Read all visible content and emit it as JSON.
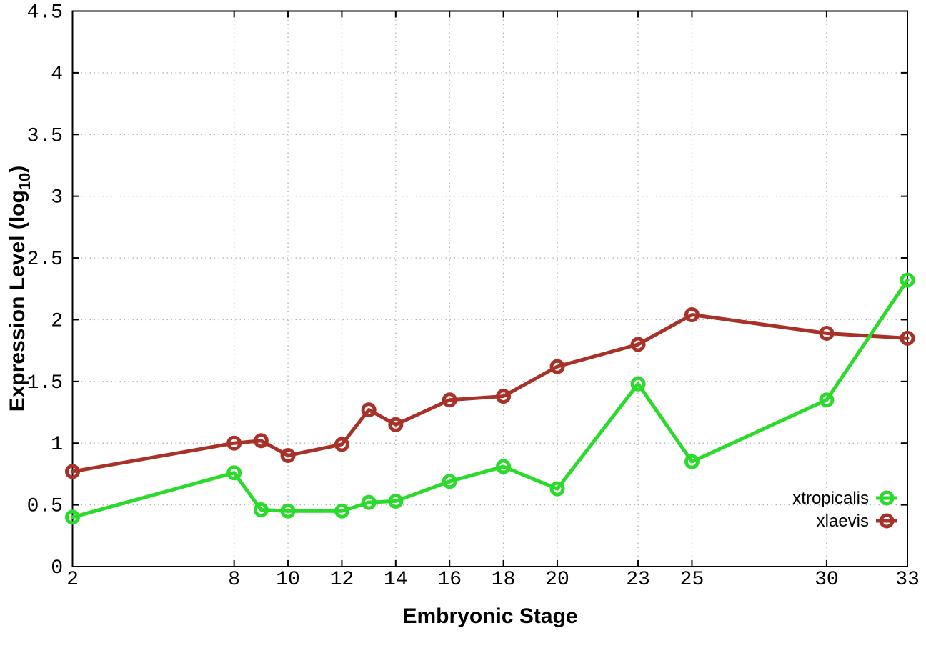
{
  "page": {
    "background": "#ffffff"
  },
  "chart_data": {
    "type": "line",
    "title": "",
    "xlabel": "Embryonic Stage",
    "ylabel": {
      "text": "Expression Level (log",
      "subscript": "10",
      "suffix": ")"
    },
    "xlim": [
      2,
      33
    ],
    "ylim": [
      0,
      4.5
    ],
    "x_tick_values": [
      2,
      8,
      10,
      12,
      14,
      16,
      18,
      20,
      23,
      25,
      30,
      33
    ],
    "x_tick_labels": [
      "2",
      "8",
      "10",
      "12",
      "14",
      "16",
      "18",
      "20",
      "23",
      "25",
      "30",
      "33"
    ],
    "y_tick_values": [
      0,
      0.5,
      1,
      1.5,
      2,
      2.5,
      3,
      3.5,
      4,
      4.5
    ],
    "y_tick_labels": [
      "0",
      "0.5",
      "1",
      "1.5",
      "2",
      "2.5",
      "3",
      "3.5",
      "4",
      "4.5"
    ],
    "grid": true,
    "grid_style": "dotted",
    "legend_position": "inside-bottom-right",
    "marker": "open-circle",
    "x": [
      2,
      8,
      9,
      10,
      12,
      13,
      14,
      16,
      18,
      20,
      23,
      25,
      30,
      33
    ],
    "series": [
      {
        "name": "xtropicalis",
        "color": "#2bdb2b",
        "values": [
          0.4,
          0.76,
          0.46,
          0.45,
          0.45,
          0.52,
          0.53,
          0.69,
          0.81,
          0.63,
          1.48,
          0.85,
          1.35,
          2.32
        ]
      },
      {
        "name": "xlaevis",
        "color": "#a83228",
        "values": [
          0.77,
          1.0,
          1.02,
          0.9,
          0.99,
          1.27,
          1.15,
          1.35,
          1.38,
          1.62,
          1.8,
          2.04,
          1.89,
          1.85
        ]
      }
    ],
    "axis_color": "#000000",
    "grid_color": "#b4b4b4",
    "text_color": "#000000"
  }
}
